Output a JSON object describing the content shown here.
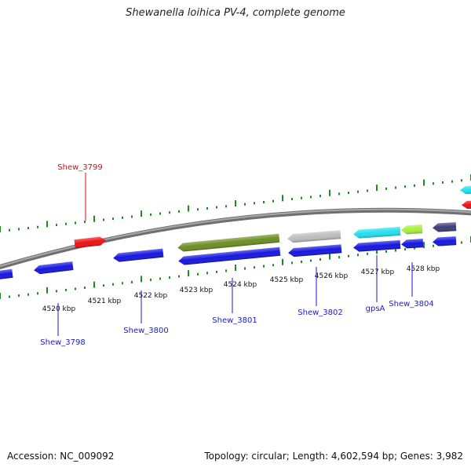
{
  "title": "Shewanella loihica PV-4, complete genome",
  "footer": {
    "accession": "Accession: NC_009092",
    "summary": "Topology: circular; Length: 4,602,594 bp; Genes: 3,982"
  },
  "colors": {
    "backbone": "#8c8c8c",
    "ticks": "#1f8a1f",
    "tick_label": "#111111",
    "gene_label_blue": "#1a1acc",
    "gene_label_red": "#d01010"
  },
  "ticks": [
    {
      "label": "4520 kbp"
    },
    {
      "label": "4521 kbp"
    },
    {
      "label": "4522 kbp"
    },
    {
      "label": "4523 kbp"
    },
    {
      "label": "4524 kbp"
    },
    {
      "label": "4525 kbp"
    },
    {
      "label": "4526 kbp"
    },
    {
      "label": "4527 kbp"
    },
    {
      "label": "4528 kbp"
    }
  ],
  "genes": [
    {
      "label": "Shew_3798",
      "color": "#1515e0",
      "strand": "-"
    },
    {
      "label": "Shew_3799",
      "color": "#ee1111",
      "strand": "+"
    },
    {
      "label": "Shew_3800",
      "color": "#1515e0",
      "strand": "-"
    },
    {
      "label": "Shew_3801",
      "color": "#1515e0",
      "strand": "-"
    },
    {
      "label": "",
      "color": "#6b8e23",
      "strand": "-"
    },
    {
      "label": "Shew_3802",
      "color": "#1515e0",
      "strand": "-"
    },
    {
      "label": "",
      "color": "#bdbdbd",
      "strand": "-"
    },
    {
      "label": "gpsA",
      "color": "#1515e0",
      "strand": "-"
    },
    {
      "label": "",
      "color": "#22e0f0",
      "strand": "-"
    },
    {
      "label": "",
      "color": "#1515e0",
      "strand": "-"
    },
    {
      "label": "",
      "color": "#a6f03c",
      "strand": "-"
    },
    {
      "label": "Shew_3804",
      "color": "#1515e0",
      "strand": "-"
    },
    {
      "label": "",
      "color": "#3c3c7a",
      "strand": "-"
    },
    {
      "label": "",
      "color": "#1515e0",
      "strand": "-"
    },
    {
      "label": "",
      "color": "#22e0f0",
      "strand": "-"
    },
    {
      "label": "",
      "color": "#ee1111",
      "strand": "-"
    }
  ]
}
